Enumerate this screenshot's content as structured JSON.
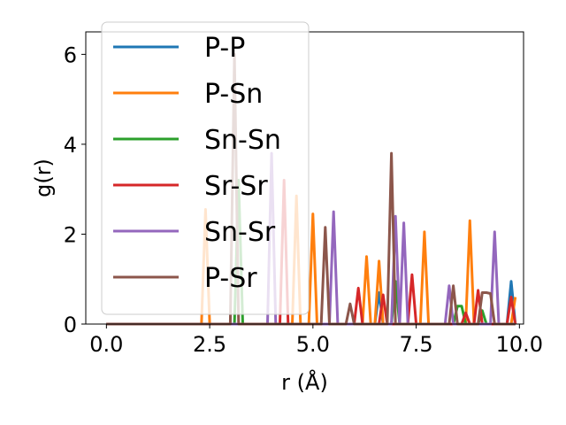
{
  "chart_data": {
    "type": "line",
    "xlabel": "r (Å)",
    "ylabel": "g(r)",
    "xlim": [
      -0.5,
      10.1
    ],
    "ylim": [
      0,
      6.5
    ],
    "xticks": [
      0.0,
      2.5,
      5.0,
      7.5,
      10.0
    ],
    "xtick_labels": [
      "0.0",
      "2.5",
      "5.0",
      "7.5",
      "10.0"
    ],
    "yticks": [
      0,
      2,
      4,
      6
    ],
    "ytick_labels": [
      "0",
      "2",
      "4",
      "6"
    ],
    "legend_position": "upper left",
    "x": [
      0.0,
      0.1,
      0.2,
      0.3,
      0.4,
      0.5,
      0.6,
      0.7,
      0.8,
      0.9,
      1.0,
      1.1,
      1.2,
      1.3,
      1.4,
      1.5,
      1.6,
      1.7,
      1.8,
      1.9,
      2.0,
      2.1,
      2.2,
      2.3,
      2.4,
      2.5,
      2.6,
      2.7,
      2.8,
      2.9,
      3.0,
      3.1,
      3.2,
      3.3,
      3.4,
      3.5,
      3.6,
      3.7,
      3.8,
      3.9,
      4.0,
      4.1,
      4.2,
      4.3,
      4.4,
      4.5,
      4.6,
      4.7,
      4.8,
      4.9,
      5.0,
      5.1,
      5.2,
      5.3,
      5.4,
      5.5,
      5.6,
      5.7,
      5.8,
      5.9,
      6.0,
      6.1,
      6.2,
      6.3,
      6.4,
      6.5,
      6.6,
      6.7,
      6.8,
      6.9,
      7.0,
      7.1,
      7.2,
      7.3,
      7.4,
      7.5,
      7.6,
      7.7,
      7.8,
      7.9,
      8.0,
      8.1,
      8.2,
      8.3,
      8.4,
      8.5,
      8.6,
      8.7,
      8.8,
      8.9,
      9.0,
      9.1,
      9.2,
      9.3,
      9.4,
      9.5,
      9.6,
      9.7,
      9.8,
      9.9
    ],
    "series": [
      {
        "name": "P-P",
        "color": "#1f77b4",
        "values": [
          0,
          0,
          0,
          0,
          0,
          0,
          0,
          0,
          0,
          0,
          0,
          0,
          0,
          0,
          0,
          0,
          0,
          0,
          0,
          0,
          0,
          0,
          0,
          0,
          0,
          0,
          0,
          0,
          0,
          0,
          0,
          0,
          0,
          0,
          0,
          0,
          0,
          0,
          0,
          0,
          0,
          0,
          0,
          0,
          0,
          0,
          0,
          0,
          0,
          0,
          0,
          0,
          0,
          0,
          0,
          0,
          0,
          0,
          0,
          0,
          0,
          0,
          0,
          0,
          0,
          0,
          0.7,
          0,
          0,
          0,
          0,
          0,
          0,
          0,
          0,
          0,
          0,
          0,
          0,
          0,
          0,
          0,
          0,
          0,
          0,
          0,
          0,
          0,
          0,
          0,
          0,
          0,
          0,
          0,
          0,
          0,
          0,
          0,
          0.95,
          0
        ]
      },
      {
        "name": "P-Sn",
        "color": "#ff7f0e",
        "values": [
          0,
          0,
          0,
          0,
          0,
          0,
          0,
          0,
          0,
          0,
          0,
          0,
          0,
          0,
          0,
          0,
          0,
          0,
          0,
          0,
          0,
          0,
          0,
          0,
          2.55,
          0,
          0,
          0,
          0,
          0,
          0,
          0,
          0,
          0,
          0,
          0,
          0,
          0,
          0,
          0,
          0,
          0,
          0,
          0,
          0,
          0,
          2.85,
          0,
          0,
          0,
          2.45,
          0,
          0,
          0,
          0,
          0,
          0,
          0,
          0,
          0,
          0,
          0,
          0,
          1.5,
          0,
          0,
          1.4,
          0,
          0,
          0,
          0,
          0,
          0,
          0,
          0,
          0,
          0,
          2.05,
          0,
          0,
          0,
          0,
          0,
          0,
          0,
          0,
          0,
          0,
          2.3,
          0,
          0,
          0,
          0,
          0,
          0,
          0,
          0,
          0,
          0,
          0.6
        ]
      },
      {
        "name": "Sn-Sn",
        "color": "#2ca02c",
        "values": [
          0,
          0,
          0,
          0,
          0,
          0,
          0,
          0,
          0,
          0,
          0,
          0,
          0,
          0,
          0,
          0,
          0,
          0,
          0,
          0,
          0,
          0,
          0,
          0,
          0,
          0,
          0,
          0,
          0,
          0,
          0,
          0,
          3.2,
          0,
          0,
          0,
          0,
          0,
          0,
          0,
          0,
          0,
          0,
          0,
          0,
          0,
          0,
          0,
          0,
          0,
          0,
          0,
          0,
          0,
          0,
          0,
          0,
          0,
          0,
          0,
          0,
          0,
          0,
          0,
          0,
          0,
          0,
          0,
          0,
          0,
          0.95,
          0,
          0,
          0,
          0,
          0,
          0,
          0,
          0,
          0,
          0,
          0,
          0,
          0,
          0,
          0.4,
          0.4,
          0,
          0,
          0,
          0,
          0.3,
          0,
          0,
          0,
          0,
          0,
          0,
          0,
          0
        ]
      },
      {
        "name": "Sr-Sr",
        "color": "#d62728",
        "values": [
          0,
          0,
          0,
          0,
          0,
          0,
          0,
          0,
          0,
          0,
          0,
          0,
          0,
          0,
          0,
          0,
          0,
          0,
          0,
          0,
          0,
          0,
          0,
          0,
          0,
          0,
          0,
          0,
          0,
          0,
          0,
          0,
          0,
          0,
          0,
          0,
          0,
          0,
          0,
          0,
          0,
          0,
          0,
          3.2,
          0,
          0,
          0,
          0,
          0,
          0,
          0,
          0,
          0,
          0,
          0,
          0,
          0,
          0,
          0,
          0,
          0,
          0.8,
          0,
          0,
          0,
          0,
          0,
          0.65,
          0,
          0,
          0,
          0,
          0,
          0,
          1.1,
          0,
          0,
          0,
          0,
          0,
          0,
          0,
          0,
          0,
          0,
          0,
          0,
          0.25,
          0,
          0,
          0.75,
          0,
          0,
          0,
          0,
          0,
          0,
          0,
          0.6,
          0
        ]
      },
      {
        "name": "Sn-Sr",
        "color": "#9467bd",
        "values": [
          0,
          0,
          0,
          0,
          0,
          0,
          0,
          0,
          0,
          0,
          0,
          0,
          0,
          0,
          0,
          0,
          0,
          0,
          0,
          0,
          0,
          0,
          0,
          0,
          0,
          0,
          0,
          0,
          0,
          0,
          0,
          0,
          0,
          0,
          0,
          0,
          0,
          0,
          0,
          0,
          3.8,
          0,
          0,
          0,
          0,
          0,
          0,
          0,
          0,
          0,
          0,
          0,
          0,
          0,
          0,
          2.5,
          0,
          0,
          0,
          0,
          0,
          0,
          0,
          0,
          0,
          0,
          0,
          0,
          0,
          0,
          2.4,
          0,
          2.25,
          0,
          0,
          0,
          0,
          0,
          0,
          0,
          0,
          0,
          0,
          0.85,
          0,
          0,
          0,
          0,
          0,
          0,
          0,
          0,
          0,
          0,
          2.05,
          0,
          0,
          0,
          0,
          0
        ]
      },
      {
        "name": "P-Sr",
        "color": "#8c564b",
        "values": [
          0,
          0,
          0,
          0,
          0,
          0,
          0,
          0,
          0,
          0,
          0,
          0,
          0,
          0,
          0,
          0,
          0,
          0,
          0,
          0,
          0,
          0,
          0,
          0,
          0,
          0,
          0,
          0,
          0,
          0,
          0,
          6.0,
          0,
          0,
          0,
          0,
          0,
          0,
          0,
          0,
          0,
          0,
          0,
          0,
          0,
          0,
          0,
          0,
          0,
          0,
          0,
          0,
          0,
          2.15,
          0,
          0,
          0,
          0,
          0,
          0.45,
          0,
          0,
          0,
          0,
          0,
          0,
          0,
          0,
          0,
          3.8,
          0,
          0,
          0,
          0,
          0,
          0,
          0,
          0,
          0,
          0,
          0,
          0,
          0,
          0,
          0.85,
          0,
          0,
          0,
          0,
          0,
          0,
          0.7,
          0.7,
          0.68,
          0,
          0,
          0,
          0,
          0,
          0
        ]
      }
    ]
  }
}
